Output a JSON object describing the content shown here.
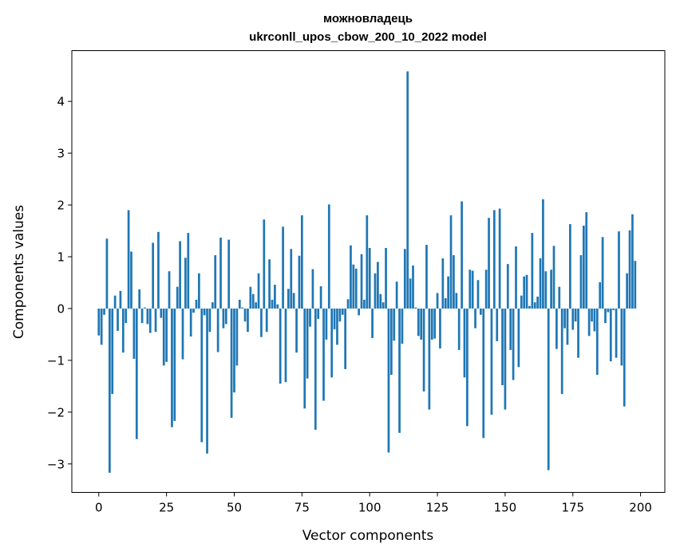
{
  "chart_data": {
    "type": "bar",
    "title_lines": [
      "можновладець",
      "ukrconll_upos_cbow_200_10_2022 model"
    ],
    "xlabel": "Vector components",
    "ylabel": "Components values",
    "xlim": [
      -9.95,
      208.95
    ],
    "ylim": [
      -3.55,
      4.98
    ],
    "x_ticks": [
      0,
      25,
      50,
      75,
      100,
      125,
      150,
      175,
      200
    ],
    "y_ticks": [
      -3,
      -2,
      -1,
      0,
      1,
      2,
      3,
      4
    ],
    "y_tick_labels": [
      "−3",
      "−2",
      "−1",
      "0",
      "1",
      "2",
      "3",
      "4"
    ],
    "x_tick_labels": [
      "0",
      "25",
      "50",
      "75",
      "100",
      "125",
      "150",
      "175",
      "200"
    ],
    "bar_color": "#1f77b4",
    "grid": false,
    "values": [
      -0.52,
      -0.7,
      -0.12,
      1.35,
      -3.17,
      -1.65,
      0.25,
      -0.43,
      0.34,
      -0.85,
      -0.28,
      1.9,
      1.1,
      -0.97,
      -2.52,
      0.37,
      -0.28,
      0.02,
      -0.3,
      -0.47,
      1.27,
      -0.45,
      1.48,
      -0.18,
      -1.1,
      -1.03,
      0.72,
      -2.29,
      -2.17,
      0.42,
      1.3,
      -0.98,
      0.98,
      1.46,
      -0.54,
      -0.08,
      0.17,
      0.68,
      -2.58,
      -0.13,
      -2.8,
      -0.45,
      0.12,
      1.03,
      -0.84,
      1.37,
      -0.38,
      -0.3,
      1.33,
      -2.11,
      -1.62,
      -1.1,
      0.17,
      0.02,
      -0.25,
      -0.45,
      0.42,
      0.28,
      0.12,
      0.68,
      -0.55,
      1.72,
      -0.45,
      0.95,
      0.17,
      0.46,
      0.08,
      -1.45,
      1.58,
      -1.42,
      0.38,
      1.15,
      0.3,
      -0.85,
      1.02,
      1.8,
      -1.93,
      -1.35,
      -0.35,
      0.76,
      -2.34,
      -0.2,
      0.43,
      -1.78,
      -0.6,
      2.01,
      -1.33,
      -0.4,
      -0.7,
      -0.25,
      -0.12,
      -1.17,
      0.18,
      1.22,
      0.85,
      0.77,
      -0.13,
      1.05,
      0.17,
      1.8,
      1.17,
      -0.57,
      0.68,
      0.9,
      0.28,
      0.12,
      1.17,
      -2.78,
      -1.28,
      -0.62,
      0.52,
      -2.4,
      -0.68,
      1.15,
      4.58,
      0.58,
      0.83,
      0.02,
      -0.53,
      -0.6,
      -1.6,
      1.23,
      -1.95,
      -0.6,
      -0.58,
      0.3,
      -0.77,
      0.97,
      0.2,
      0.62,
      1.8,
      1.03,
      0.3,
      -0.8,
      2.07,
      -1.33,
      -2.27,
      0.75,
      0.73,
      -0.38,
      0.55,
      -0.12,
      -2.5,
      0.75,
      1.75,
      -2.05,
      1.9,
      -0.63,
      1.93,
      -1.48,
      -1.95,
      0.86,
      -0.8,
      -1.38,
      1.2,
      -1.13,
      0.25,
      0.62,
      0.65,
      0.05,
      1.46,
      0.12,
      0.23,
      0.97,
      2.11,
      0.72,
      -3.12,
      0.75,
      1.21,
      -0.78,
      0.42,
      -1.65,
      -0.38,
      -0.7,
      1.63,
      -0.41,
      -0.25,
      -0.95,
      1.03,
      1.6,
      1.86,
      -0.53,
      -0.25,
      -0.44,
      -1.28,
      0.51,
      1.38,
      -0.28,
      -0.07,
      -1.02,
      -0.03,
      -0.95,
      1.49,
      -1.1,
      -1.89,
      0.68,
      1.51,
      1.82,
      0.92
    ]
  }
}
